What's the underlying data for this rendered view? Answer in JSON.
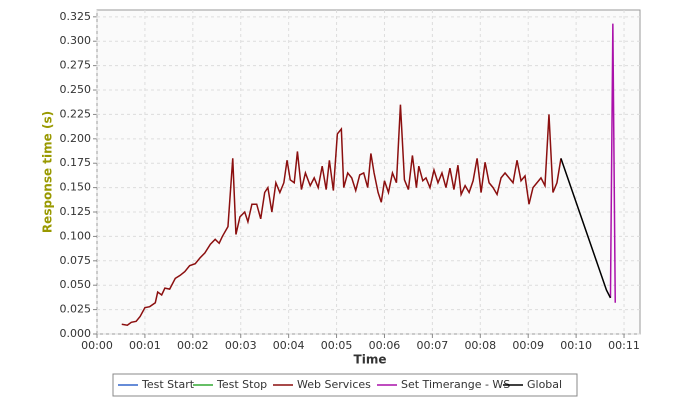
{
  "chart_data": {
    "type": "line",
    "x_label": "Time",
    "y_label": "Response time (s)",
    "xlim": [
      0,
      680
    ],
    "ylim": [
      0,
      0.332
    ],
    "xticks": [
      {
        "value": 0,
        "label": "00:00"
      },
      {
        "value": 60,
        "label": "00:01"
      },
      {
        "value": 120,
        "label": "00:02"
      },
      {
        "value": 180,
        "label": "00:03"
      },
      {
        "value": 240,
        "label": "00:04"
      },
      {
        "value": 300,
        "label": "00:05"
      },
      {
        "value": 360,
        "label": "00:06"
      },
      {
        "value": 420,
        "label": "00:07"
      },
      {
        "value": 480,
        "label": "00:08"
      },
      {
        "value": 540,
        "label": "00:09"
      },
      {
        "value": 600,
        "label": "00:10"
      },
      {
        "value": 660,
        "label": "00:11"
      }
    ],
    "yticks": [
      {
        "value": 0,
        "label": "0.000"
      },
      {
        "value": 0.025,
        "label": "0.025"
      },
      {
        "value": 0.05,
        "label": "0.050"
      },
      {
        "value": 0.075,
        "label": "0.075"
      },
      {
        "value": 0.1,
        "label": "0.100"
      },
      {
        "value": 0.125,
        "label": "0.125"
      },
      {
        "value": 0.15,
        "label": "0.150"
      },
      {
        "value": 0.175,
        "label": "0.175"
      },
      {
        "value": 0.2,
        "label": "0.200"
      },
      {
        "value": 0.225,
        "label": "0.225"
      },
      {
        "value": 0.25,
        "label": "0.250"
      },
      {
        "value": 0.275,
        "label": "0.275"
      },
      {
        "value": 0.3,
        "label": "0.300"
      },
      {
        "value": 0.325,
        "label": "0.325"
      }
    ],
    "grid": true,
    "series": [
      {
        "name": "Test Start",
        "color": "#3366cc",
        "x": [],
        "values": []
      },
      {
        "name": "Test Stop",
        "color": "#33aa33",
        "x": [],
        "values": []
      },
      {
        "name": "Web Services",
        "color": "#8b0f0f",
        "x": [
          31,
          38,
          43,
          49,
          54,
          60,
          66,
          73,
          76,
          81,
          85,
          91,
          98,
          104,
          110,
          116,
          123,
          129,
          135,
          142,
          148,
          153,
          157,
          164,
          170,
          174,
          179,
          185,
          189,
          194,
          200,
          205,
          210,
          214,
          219,
          224,
          229,
          234,
          238,
          242,
          247,
          251,
          256,
          261,
          267,
          272,
          277,
          282,
          287,
          291,
          296,
          301,
          306,
          309,
          314,
          319,
          324,
          329,
          334,
          339,
          343,
          347,
          352,
          356,
          360,
          365,
          370,
          375,
          380,
          385,
          390,
          395,
          400,
          403,
          408,
          412,
          417,
          422,
          427,
          432,
          437,
          442,
          447,
          452,
          456,
          461,
          466,
          471,
          476,
          481,
          486,
          491,
          496,
          501,
          506,
          511,
          516,
          521,
          526,
          531,
          536,
          541,
          546,
          551,
          556,
          561,
          566,
          571,
          576,
          581
        ],
        "values": [
          0.01,
          0.009,
          0.012,
          0.013,
          0.018,
          0.027,
          0.028,
          0.032,
          0.043,
          0.04,
          0.047,
          0.046,
          0.057,
          0.06,
          0.064,
          0.07,
          0.072,
          0.078,
          0.083,
          0.092,
          0.097,
          0.093,
          0.1,
          0.11,
          0.18,
          0.102,
          0.12,
          0.125,
          0.115,
          0.133,
          0.133,
          0.118,
          0.145,
          0.15,
          0.125,
          0.155,
          0.145,
          0.155,
          0.178,
          0.158,
          0.155,
          0.187,
          0.148,
          0.165,
          0.152,
          0.16,
          0.15,
          0.172,
          0.148,
          0.178,
          0.147,
          0.205,
          0.21,
          0.15,
          0.165,
          0.16,
          0.147,
          0.163,
          0.165,
          0.15,
          0.185,
          0.165,
          0.145,
          0.135,
          0.157,
          0.145,
          0.165,
          0.155,
          0.235,
          0.158,
          0.148,
          0.183,
          0.15,
          0.172,
          0.157,
          0.16,
          0.15,
          0.168,
          0.155,
          0.165,
          0.15,
          0.17,
          0.148,
          0.173,
          0.143,
          0.152,
          0.145,
          0.157,
          0.18,
          0.145,
          0.176,
          0.155,
          0.15,
          0.143,
          0.16,
          0.165,
          0.16,
          0.155,
          0.178,
          0.157,
          0.162,
          0.133,
          0.15,
          0.155,
          0.16,
          0.152,
          0.225,
          0.145,
          0.155,
          0.18
        ]
      },
      {
        "name": "Set Timerange - WS",
        "color": "#aa11aa",
        "x": [
          643,
          646,
          649
        ],
        "values": [
          0.037,
          0.318,
          0.032
        ]
      },
      {
        "name": "Global",
        "color": "#000000",
        "x": [
          581,
          638,
          643
        ],
        "values": [
          0.18,
          0.045,
          0.037
        ]
      }
    ]
  }
}
